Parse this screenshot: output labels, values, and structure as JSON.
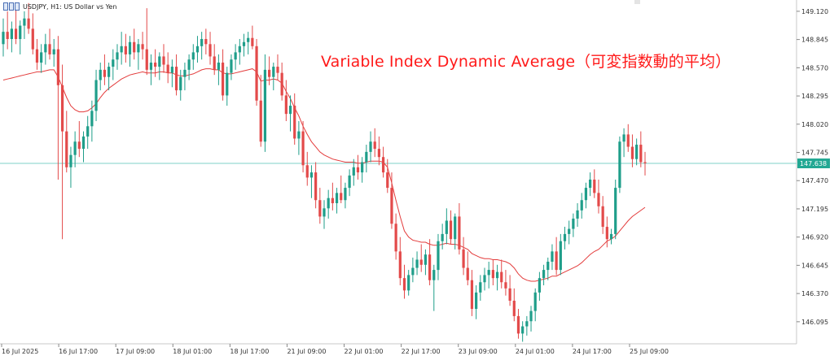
{
  "header": {
    "symbol_line": "USDJPY, H1:  US Dollar vs Yen"
  },
  "chart_data": {
    "type": "candlestick",
    "title": "Variable Index Dynamic Average（可変指数動的平均）",
    "ylim": [
      145.88,
      149.23
    ],
    "y_ticks": [
      "149.120",
      "148.845",
      "148.570",
      "148.295",
      "148.020",
      "147.745",
      "147.470",
      "147.195",
      "146.920",
      "146.645",
      "146.370",
      "146.095"
    ],
    "current_price": "147.638",
    "x_ticks": [
      "16 Jul 2025",
      "16 Jul 17:00",
      "17 Jul 09:00",
      "18 Jul 01:00",
      "18 Jul 17:00",
      "21 Jul 09:00",
      "22 Jul 01:00",
      "22 Jul 17:00",
      "23 Jul 09:00",
      "24 Jul 01:00",
      "24 Jul 17:00",
      "25 Jul 09:00"
    ],
    "colors": {
      "up": "#1f9e8a",
      "down": "#e34a4a",
      "vidya": "#e33b3b",
      "price_line": "#7fd1c8",
      "grid_text": "#333333"
    },
    "candles": [
      [
        148.8,
        149.05,
        148.68,
        148.92
      ],
      [
        148.92,
        149.12,
        148.75,
        148.85
      ],
      [
        148.85,
        149.02,
        148.72,
        148.95
      ],
      [
        148.95,
        149.14,
        148.8,
        148.85
      ],
      [
        148.85,
        149.03,
        148.7,
        148.98
      ],
      [
        148.98,
        149.12,
        148.85,
        149.05
      ],
      [
        149.05,
        149.2,
        148.9,
        148.95
      ],
      [
        148.95,
        149.1,
        148.7,
        148.75
      ],
      [
        148.75,
        148.85,
        148.55,
        148.62
      ],
      [
        148.62,
        148.8,
        148.52,
        148.72
      ],
      [
        148.72,
        148.9,
        148.6,
        148.8
      ],
      [
        148.8,
        148.95,
        148.65,
        148.7
      ],
      [
        148.7,
        148.85,
        148.58,
        148.75
      ],
      [
        148.75,
        148.88,
        147.48,
        148.4
      ],
      [
        148.4,
        148.6,
        146.9,
        147.95
      ],
      [
        147.95,
        148.15,
        147.55,
        147.6
      ],
      [
        147.6,
        147.8,
        147.4,
        147.72
      ],
      [
        147.72,
        147.95,
        147.6,
        147.85
      ],
      [
        147.85,
        148.05,
        147.7,
        147.78
      ],
      [
        147.78,
        147.95,
        147.65,
        147.9
      ],
      [
        147.9,
        148.1,
        147.78,
        148.0
      ],
      [
        148.0,
        148.25,
        147.85,
        148.15
      ],
      [
        148.15,
        148.55,
        148.05,
        148.45
      ],
      [
        148.45,
        148.62,
        148.35,
        148.55
      ],
      [
        148.55,
        148.7,
        148.4,
        148.48
      ],
      [
        148.48,
        148.62,
        148.35,
        148.58
      ],
      [
        148.58,
        148.75,
        148.45,
        148.65
      ],
      [
        148.65,
        148.8,
        148.55,
        148.72
      ],
      [
        148.72,
        148.92,
        148.6,
        148.78
      ],
      [
        148.78,
        148.9,
        148.62,
        148.7
      ],
      [
        148.7,
        148.88,
        148.58,
        148.82
      ],
      [
        148.82,
        148.95,
        148.65,
        148.72
      ],
      [
        148.72,
        148.85,
        148.55,
        148.8
      ],
      [
        148.8,
        148.92,
        148.65,
        148.75
      ],
      [
        148.75,
        149.15,
        148.5,
        148.55
      ],
      [
        148.55,
        148.7,
        148.4,
        148.62
      ],
      [
        148.62,
        148.75,
        148.48,
        148.58
      ],
      [
        148.58,
        148.72,
        148.45,
        148.68
      ],
      [
        148.68,
        148.8,
        148.52,
        148.6
      ],
      [
        148.6,
        148.72,
        148.42,
        148.52
      ],
      [
        148.52,
        148.65,
        148.38,
        148.58
      ],
      [
        148.58,
        148.7,
        148.3,
        148.35
      ],
      [
        148.35,
        148.55,
        148.25,
        148.48
      ],
      [
        148.48,
        148.62,
        148.35,
        148.55
      ],
      [
        148.55,
        148.7,
        148.45,
        148.65
      ],
      [
        148.65,
        148.8,
        148.55,
        148.72
      ],
      [
        148.72,
        148.88,
        148.62,
        148.78
      ],
      [
        148.78,
        148.92,
        148.65,
        148.85
      ],
      [
        148.85,
        148.95,
        148.7,
        148.8
      ],
      [
        148.8,
        148.92,
        148.6,
        148.68
      ],
      [
        148.68,
        148.8,
        148.5,
        148.55
      ],
      [
        148.55,
        148.7,
        148.4,
        148.62
      ],
      [
        148.62,
        148.75,
        148.25,
        148.3
      ],
      [
        148.3,
        148.58,
        148.2,
        148.52
      ],
      [
        148.52,
        148.7,
        148.45,
        148.65
      ],
      [
        148.65,
        148.8,
        148.55,
        148.72
      ],
      [
        148.72,
        148.85,
        148.6,
        148.78
      ],
      [
        148.78,
        148.9,
        148.68,
        148.82
      ],
      [
        148.82,
        148.92,
        148.7,
        148.86
      ],
      [
        148.86,
        148.98,
        148.75,
        148.78
      ],
      [
        148.78,
        148.85,
        148.2,
        148.25
      ],
      [
        148.25,
        148.5,
        147.8,
        147.85
      ],
      [
        147.85,
        148.7,
        147.75,
        148.55
      ],
      [
        148.55,
        148.68,
        148.4,
        148.48
      ],
      [
        148.48,
        148.62,
        148.35,
        148.58
      ],
      [
        148.58,
        148.7,
        148.45,
        148.52
      ],
      [
        148.52,
        148.62,
        148.25,
        148.3
      ],
      [
        148.3,
        148.45,
        148.05,
        148.12
      ],
      [
        148.12,
        148.3,
        147.95,
        148.2
      ],
      [
        148.2,
        148.32,
        147.82,
        147.88
      ],
      [
        147.88,
        148.05,
        147.72,
        147.95
      ],
      [
        147.95,
        148.05,
        147.55,
        147.62
      ],
      [
        147.62,
        147.75,
        147.42,
        147.5
      ],
      [
        147.5,
        147.62,
        147.3,
        147.55
      ],
      [
        147.55,
        147.65,
        147.2,
        147.28
      ],
      [
        147.28,
        147.4,
        147.05,
        147.12
      ],
      [
        147.12,
        147.28,
        147.0,
        147.2
      ],
      [
        147.2,
        147.38,
        147.1,
        147.3
      ],
      [
        147.3,
        147.45,
        147.18,
        147.25
      ],
      [
        147.25,
        147.4,
        147.15,
        147.35
      ],
      [
        147.35,
        147.52,
        147.25,
        147.28
      ],
      [
        147.28,
        147.45,
        147.2,
        147.4
      ],
      [
        147.4,
        147.58,
        147.32,
        147.52
      ],
      [
        147.52,
        147.68,
        147.42,
        147.6
      ],
      [
        147.6,
        147.72,
        147.48,
        147.55
      ],
      [
        147.55,
        147.7,
        147.45,
        147.65
      ],
      [
        147.65,
        147.82,
        147.55,
        147.75
      ],
      [
        147.75,
        147.95,
        147.65,
        147.85
      ],
      [
        147.85,
        147.98,
        147.7,
        147.78
      ],
      [
        147.78,
        147.9,
        147.62,
        147.7
      ],
      [
        147.7,
        147.8,
        147.5,
        147.55
      ],
      [
        147.55,
        147.68,
        147.35,
        147.4
      ],
      [
        147.4,
        147.55,
        147.0,
        147.05
      ],
      [
        147.05,
        147.15,
        146.7,
        146.78
      ],
      [
        146.78,
        146.92,
        146.45,
        146.52
      ],
      [
        146.52,
        146.65,
        146.32,
        146.4
      ],
      [
        146.4,
        146.6,
        146.35,
        146.55
      ],
      [
        146.55,
        146.72,
        146.48,
        146.62
      ],
      [
        146.62,
        146.78,
        146.55,
        146.7
      ],
      [
        146.7,
        146.85,
        146.58,
        146.65
      ],
      [
        146.65,
        146.8,
        146.55,
        146.75
      ],
      [
        146.75,
        146.9,
        146.45,
        146.5
      ],
      [
        146.5,
        146.65,
        146.2,
        146.6
      ],
      [
        146.6,
        146.95,
        146.5,
        146.88
      ],
      [
        146.88,
        147.05,
        146.8,
        146.95
      ],
      [
        146.95,
        147.2,
        146.85,
        147.08
      ],
      [
        147.08,
        147.18,
        146.85,
        146.9
      ],
      [
        146.9,
        147.15,
        146.8,
        147.12
      ],
      [
        147.12,
        147.25,
        146.75,
        146.8
      ],
      [
        146.8,
        146.92,
        146.55,
        146.62
      ],
      [
        146.62,
        146.78,
        146.45,
        146.5
      ],
      [
        146.5,
        146.6,
        146.15,
        146.22
      ],
      [
        146.22,
        146.45,
        146.12,
        146.38
      ],
      [
        146.38,
        146.55,
        146.3,
        146.48
      ],
      [
        146.48,
        146.62,
        146.4,
        146.55
      ],
      [
        146.55,
        146.68,
        146.42,
        146.6
      ],
      [
        146.6,
        146.7,
        146.45,
        146.52
      ],
      [
        146.52,
        146.65,
        146.4,
        146.58
      ],
      [
        146.58,
        146.7,
        146.42,
        146.48
      ],
      [
        146.48,
        146.6,
        146.35,
        146.42
      ],
      [
        146.42,
        146.55,
        146.25,
        146.3
      ],
      [
        146.3,
        146.42,
        146.1,
        146.15
      ],
      [
        146.15,
        146.22,
        145.93,
        145.98
      ],
      [
        145.98,
        146.1,
        145.9,
        146.05
      ],
      [
        146.05,
        146.15,
        145.96,
        146.1
      ],
      [
        146.1,
        146.25,
        146.0,
        146.2
      ],
      [
        146.2,
        146.42,
        146.1,
        146.38
      ],
      [
        146.38,
        146.58,
        146.3,
        146.52
      ],
      [
        146.52,
        146.65,
        146.45,
        146.6
      ],
      [
        146.6,
        146.72,
        146.5,
        146.68
      ],
      [
        146.68,
        146.85,
        146.6,
        146.78
      ],
      [
        146.78,
        146.92,
        146.55,
        146.6
      ],
      [
        146.6,
        146.95,
        146.55,
        146.88
      ],
      [
        146.88,
        147.02,
        146.8,
        146.95
      ],
      [
        146.95,
        147.08,
        146.85,
        147.0
      ],
      [
        147.0,
        147.15,
        146.92,
        147.1
      ],
      [
        147.1,
        147.25,
        147.02,
        147.18
      ],
      [
        147.18,
        147.35,
        147.1,
        147.28
      ],
      [
        147.28,
        147.45,
        147.2,
        147.4
      ],
      [
        147.4,
        147.55,
        147.32,
        147.48
      ],
      [
        147.48,
        147.58,
        147.3,
        147.35
      ],
      [
        147.35,
        147.48,
        147.15,
        147.22
      ],
      [
        147.22,
        147.32,
        146.95,
        147.02
      ],
      [
        147.02,
        147.12,
        146.82,
        146.9
      ],
      [
        146.9,
        147.0,
        146.85,
        146.95
      ],
      [
        146.95,
        147.48,
        146.9,
        147.4
      ],
      [
        147.4,
        147.9,
        147.35,
        147.85
      ],
      [
        147.85,
        147.98,
        147.7,
        147.92
      ],
      [
        147.92,
        148.02,
        147.75,
        147.8
      ],
      [
        147.8,
        147.92,
        147.6,
        147.68
      ],
      [
        147.68,
        147.88,
        147.62,
        147.82
      ],
      [
        147.82,
        147.95,
        147.6,
        147.65
      ],
      [
        147.65,
        147.75,
        147.52,
        147.64
      ]
    ],
    "vidya": [
      148.45,
      148.46,
      148.47,
      148.48,
      148.49,
      148.5,
      148.51,
      148.52,
      148.53,
      148.53,
      148.54,
      148.55,
      148.55,
      148.48,
      148.38,
      148.28,
      148.2,
      148.16,
      148.14,
      148.14,
      148.15,
      148.18,
      148.22,
      148.28,
      148.33,
      148.37,
      148.4,
      148.43,
      148.46,
      148.48,
      148.5,
      148.51,
      148.52,
      148.53,
      148.52,
      148.52,
      148.52,
      148.53,
      148.53,
      148.52,
      148.52,
      148.5,
      148.49,
      148.49,
      148.5,
      148.51,
      148.53,
      148.55,
      148.56,
      148.56,
      148.55,
      148.55,
      148.52,
      148.51,
      148.51,
      148.52,
      148.53,
      148.54,
      148.55,
      148.56,
      148.53,
      148.44,
      148.45,
      148.45,
      148.46,
      148.45,
      148.42,
      148.34,
      148.27,
      148.18,
      148.1,
      148.0,
      147.92,
      147.85,
      147.8,
      147.75,
      147.72,
      147.7,
      147.68,
      147.67,
      147.66,
      147.65,
      147.65,
      147.65,
      147.64,
      147.64,
      147.65,
      147.66,
      147.66,
      147.66,
      147.65,
      147.6,
      147.45,
      147.28,
      147.12,
      146.98,
      146.92,
      146.89,
      146.88,
      146.87,
      146.87,
      146.85,
      146.84,
      146.84,
      146.85,
      146.86,
      146.85,
      146.85,
      146.84,
      146.82,
      146.8,
      146.76,
      146.74,
      146.72,
      146.71,
      146.71,
      146.7,
      146.7,
      146.69,
      146.68,
      146.66,
      146.62,
      146.56,
      146.52,
      146.5,
      146.49,
      146.49,
      146.5,
      146.51,
      146.52,
      146.54,
      146.54,
      146.56,
      146.58,
      146.6,
      146.62,
      146.64,
      146.67,
      146.71,
      146.75,
      146.78,
      146.8,
      146.84,
      146.88,
      146.9,
      146.93,
      146.98,
      147.03,
      147.08,
      147.12,
      147.15,
      147.18,
      147.21
    ]
  }
}
